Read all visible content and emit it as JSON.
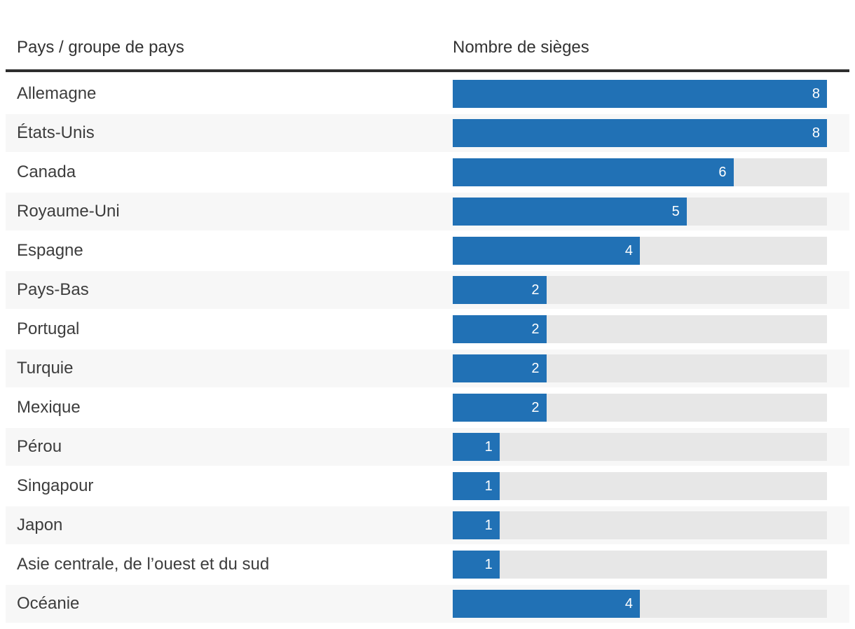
{
  "header": {
    "country_col": "Pays / groupe de pays",
    "seats_col": "Nombre de sièges"
  },
  "chart_data": {
    "type": "bar",
    "orientation": "horizontal",
    "categories": [
      "Allemagne",
      "États-Unis",
      "Canada",
      "Royaume-Uni",
      "Espagne",
      "Pays-Bas",
      "Portugal",
      "Turquie",
      "Mexique",
      "Pérou",
      "Singapour",
      "Japon",
      "Asie centrale, de l’ouest et du sud",
      "Océanie"
    ],
    "values": [
      8,
      8,
      6,
      5,
      4,
      2,
      2,
      2,
      2,
      1,
      1,
      1,
      1,
      4
    ],
    "xlabel": "Nombre de sièges",
    "ylabel": "Pays / groupe de pays",
    "xlim": [
      0,
      8
    ],
    "grid": false,
    "legend": false,
    "value_labels": "inside-right",
    "zebra_striping": true
  },
  "colors": {
    "bar": "#2171b5",
    "track": "#e7e7e7",
    "stripe": "#f7f7f7",
    "rule": "#2e2e2e",
    "header_text": "#333333",
    "label_text": "#3d3d3d",
    "value_text": "#ffffff",
    "background": "#ffffff"
  }
}
